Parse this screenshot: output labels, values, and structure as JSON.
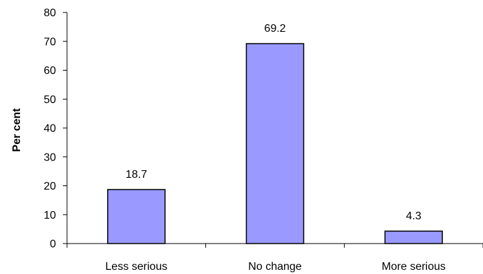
{
  "chart_data": {
    "type": "bar",
    "title": "",
    "xlabel": "",
    "ylabel": "Per cent",
    "categories": [
      "Less serious",
      "No change",
      "More serious"
    ],
    "values": [
      18.7,
      69.2,
      4.3
    ],
    "data_labels": [
      "18.7",
      "69.2",
      "4.3"
    ],
    "ylim": [
      0,
      80
    ],
    "yticks": [
      0,
      10,
      20,
      30,
      40,
      50,
      60,
      70,
      80
    ],
    "ytick_labels": [
      "0",
      "10",
      "20",
      "30",
      "40",
      "50",
      "60",
      "70",
      "80"
    ],
    "grid": false,
    "legend": "none",
    "colors": {
      "bar_fill": "#9999ff",
      "bar_stroke": "#000000",
      "axis": "#000000",
      "text": "#000000",
      "background": "#ffffff"
    }
  }
}
